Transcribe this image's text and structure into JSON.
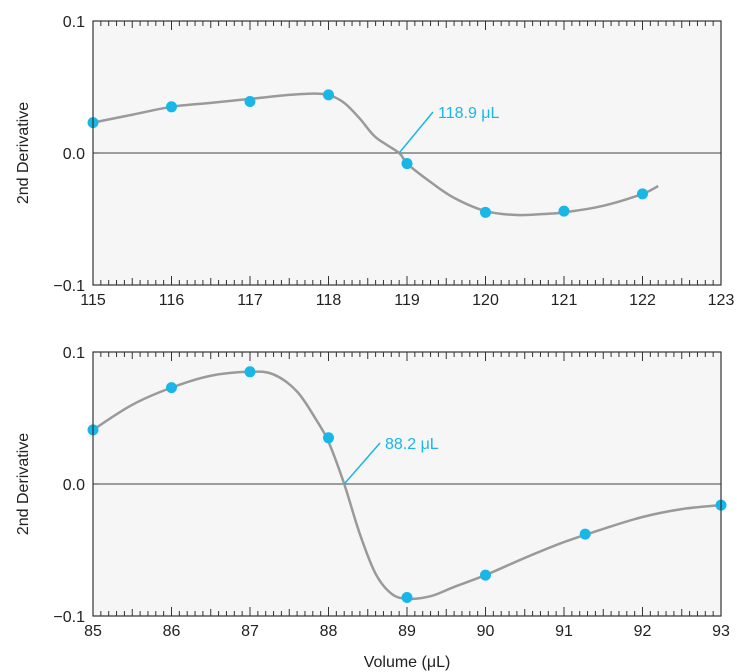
{
  "colors": {
    "panel_bg": "#f6f6f6",
    "frame": "#333333",
    "curve": "#9a9a9a",
    "points": "#19b6e8",
    "annotation": "#19b6e8"
  },
  "chart_data": [
    {
      "type": "scatter",
      "xlabel": "",
      "ylabel": "2nd Derivative",
      "xlim": [
        115,
        123
      ],
      "ylim": [
        -0.1,
        0.1
      ],
      "xticks": [
        115,
        116,
        117,
        118,
        119,
        120,
        121,
        122,
        123
      ],
      "yticks": [
        0.1,
        0.0,
        -0.1
      ],
      "xtick_labels": [
        "115",
        "116",
        "117",
        "118",
        "119",
        "120",
        "121",
        "122",
        "123"
      ],
      "ytick_labels": [
        "0.1",
        "0.0",
        "−0.1"
      ],
      "grid": false,
      "reference_line_y": 0,
      "points": [
        {
          "x": 115.0,
          "y": 0.023
        },
        {
          "x": 116.0,
          "y": 0.035
        },
        {
          "x": 117.0,
          "y": 0.039
        },
        {
          "x": 118.0,
          "y": 0.044
        },
        {
          "x": 119.0,
          "y": -0.008
        },
        {
          "x": 120.0,
          "y": -0.045
        },
        {
          "x": 121.0,
          "y": -0.044
        },
        {
          "x": 122.0,
          "y": -0.031
        }
      ],
      "curve": [
        {
          "x": 115.0,
          "y": 0.023
        },
        {
          "x": 115.5,
          "y": 0.029
        },
        {
          "x": 116.0,
          "y": 0.035
        },
        {
          "x": 116.5,
          "y": 0.038
        },
        {
          "x": 117.0,
          "y": 0.041
        },
        {
          "x": 117.5,
          "y": 0.044
        },
        {
          "x": 117.8,
          "y": 0.045
        },
        {
          "x": 118.0,
          "y": 0.044
        },
        {
          "x": 118.2,
          "y": 0.038
        },
        {
          "x": 118.4,
          "y": 0.026
        },
        {
          "x": 118.6,
          "y": 0.012
        },
        {
          "x": 118.9,
          "y": 0.0
        },
        {
          "x": 119.0,
          "y": -0.008
        },
        {
          "x": 119.3,
          "y": -0.022
        },
        {
          "x": 119.6,
          "y": -0.034
        },
        {
          "x": 120.0,
          "y": -0.044
        },
        {
          "x": 120.4,
          "y": -0.047
        },
        {
          "x": 120.8,
          "y": -0.046
        },
        {
          "x": 121.0,
          "y": -0.045
        },
        {
          "x": 121.5,
          "y": -0.04
        },
        {
          "x": 122.0,
          "y": -0.031
        },
        {
          "x": 122.2,
          "y": -0.025
        }
      ],
      "annotation": {
        "text": "118.9 μL",
        "x": 118.9,
        "y": 0.0
      }
    },
    {
      "type": "scatter",
      "xlabel": "Volume (μL)",
      "ylabel": "2nd Derivative",
      "xlim": [
        85,
        93
      ],
      "ylim": [
        -0.1,
        0.1
      ],
      "xticks": [
        85,
        86,
        87,
        88,
        89,
        90,
        91,
        92,
        93
      ],
      "yticks": [
        0.1,
        0.0,
        -0.1
      ],
      "xtick_labels": [
        "85",
        "86",
        "87",
        "88",
        "89",
        "90",
        "91",
        "92",
        "93"
      ],
      "ytick_labels": [
        "0.1",
        "0.0",
        "−0.1"
      ],
      "grid": false,
      "reference_line_y": 0,
      "points": [
        {
          "x": 85.0,
          "y": 0.041
        },
        {
          "x": 86.0,
          "y": 0.073
        },
        {
          "x": 87.0,
          "y": 0.085
        },
        {
          "x": 88.0,
          "y": 0.035
        },
        {
          "x": 89.0,
          "y": -0.086
        },
        {
          "x": 90.0,
          "y": -0.069
        },
        {
          "x": 91.27,
          "y": -0.038
        },
        {
          "x": 93.0,
          "y": -0.016
        }
      ],
      "curve": [
        {
          "x": 85.0,
          "y": 0.041
        },
        {
          "x": 85.5,
          "y": 0.06
        },
        {
          "x": 86.0,
          "y": 0.073
        },
        {
          "x": 86.5,
          "y": 0.082
        },
        {
          "x": 87.0,
          "y": 0.085
        },
        {
          "x": 87.3,
          "y": 0.083
        },
        {
          "x": 87.6,
          "y": 0.07
        },
        {
          "x": 87.85,
          "y": 0.048
        },
        {
          "x": 88.0,
          "y": 0.032
        },
        {
          "x": 88.2,
          "y": 0.0
        },
        {
          "x": 88.4,
          "y": -0.038
        },
        {
          "x": 88.6,
          "y": -0.068
        },
        {
          "x": 88.8,
          "y": -0.083
        },
        {
          "x": 89.0,
          "y": -0.087
        },
        {
          "x": 89.3,
          "y": -0.085
        },
        {
          "x": 89.6,
          "y": -0.078
        },
        {
          "x": 90.0,
          "y": -0.069
        },
        {
          "x": 90.5,
          "y": -0.056
        },
        {
          "x": 91.0,
          "y": -0.044
        },
        {
          "x": 91.5,
          "y": -0.034
        },
        {
          "x": 92.0,
          "y": -0.025
        },
        {
          "x": 92.5,
          "y": -0.019
        },
        {
          "x": 93.0,
          "y": -0.016
        }
      ],
      "annotation": {
        "text": "88.2 μL",
        "x": 88.2,
        "y": 0.0
      }
    }
  ]
}
